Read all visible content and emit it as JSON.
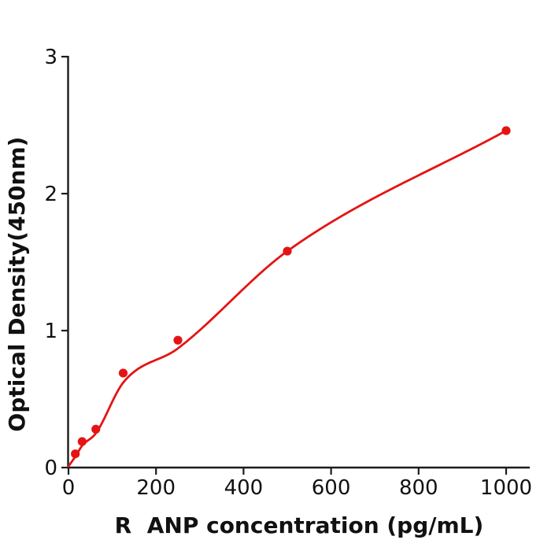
{
  "chart_data": {
    "type": "scatter",
    "fit_line": true,
    "title": "",
    "xlabel": "R  ANP concentration (pg/mL)",
    "ylabel": "Optical Density(450nm)",
    "x": [
      15.6,
      31.2,
      62.5,
      125,
      250,
      500,
      1000
    ],
    "y": [
      0.1,
      0.19,
      0.28,
      0.69,
      0.93,
      1.58,
      2.46
    ],
    "fit_curve_samples": {
      "x": [
        0,
        15.6,
        31.2,
        62.5,
        125,
        250,
        500,
        1000
      ],
      "y": [
        0.01,
        0.08,
        0.16,
        0.25,
        0.62,
        0.87,
        1.58,
        2.46
      ]
    },
    "xticks": [
      0,
      200,
      400,
      600,
      800,
      1000
    ],
    "yticks": [
      0,
      1,
      2,
      3
    ],
    "xlim": [
      0,
      1054
    ],
    "ylim": [
      0,
      3
    ],
    "grid": false,
    "legend_position": "none",
    "marker_color": "#e41414",
    "line_color": "#e41414",
    "axis_color": "#1c1c1c",
    "background_color": "#ffffff"
  }
}
